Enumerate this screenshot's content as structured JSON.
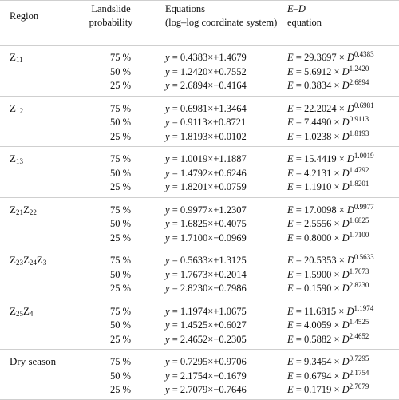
{
  "header": {
    "region": "Region",
    "prob_line1": "Landslide",
    "prob_line2": "probability",
    "eq_line1": "Equations",
    "eq_line2": "(log–log coordinate system)",
    "ed_line1": "E–D",
    "ed_line2": "equation"
  },
  "groups": [
    {
      "name": "Z",
      "sub": "11",
      "name2": "",
      "sub2": "",
      "name3": "",
      "sub3": "",
      "rows": [
        {
          "p": "75 %",
          "slope": "0.4383",
          "sign": "+",
          "icept": "1.4679",
          "E": "29.3697",
          "exp": "0.4383"
        },
        {
          "p": "50 %",
          "slope": "1.2420",
          "sign": "+",
          "icept": "0.7552",
          "E": "5.6912",
          "exp": "1.2420"
        },
        {
          "p": "25 %",
          "slope": "2.6894",
          "sign": "−",
          "icept": "0.4164",
          "E": "0.3834",
          "exp": "2.6894"
        }
      ]
    },
    {
      "name": "Z",
      "sub": "12",
      "name2": "",
      "sub2": "",
      "name3": "",
      "sub3": "",
      "rows": [
        {
          "p": "75 %",
          "slope": "0.6981",
          "sign": "+",
          "icept": "1.3464",
          "E": "22.2024",
          "exp": "0.6981"
        },
        {
          "p": "50 %",
          "slope": "0.9113",
          "sign": "+",
          "icept": "0.8721",
          "E": "7.4490",
          "exp": "0.9113"
        },
        {
          "p": "25 %",
          "slope": "1.8193",
          "sign": "+",
          "icept": "0.0102",
          "E": "1.0238",
          "exp": "1.8193"
        }
      ]
    },
    {
      "name": "Z",
      "sub": "13",
      "name2": "",
      "sub2": "",
      "name3": "",
      "sub3": "",
      "rows": [
        {
          "p": "75 %",
          "slope": "1.0019",
          "sign": "+",
          "icept": "1.1887",
          "E": "15.4419",
          "exp": "1.0019"
        },
        {
          "p": "50 %",
          "slope": "1.4792",
          "sign": "+",
          "icept": "0.6246",
          "E": "4.2131",
          "exp": "1.4792"
        },
        {
          "p": "25 %",
          "slope": "1.8201",
          "sign": "+",
          "icept": "0.0759",
          "E": "1.1910",
          "exp": "1.8201"
        }
      ]
    },
    {
      "name": "Z",
      "sub": "21",
      "name2": "Z",
      "sub2": "22",
      "name3": "",
      "sub3": "",
      "rows": [
        {
          "p": "75 %",
          "slope": "0.9977",
          "sign": "+",
          "icept": "1.2307",
          "E": "17.0098",
          "exp": "0.9977"
        },
        {
          "p": "50 %",
          "slope": "1.6825",
          "sign": "+",
          "icept": "0.4075",
          "E": "2.5556",
          "exp": "1.6825"
        },
        {
          "p": "25 %",
          "slope": "1.7100",
          "sign": "−",
          "icept": "0.0969",
          "E": "0.8000",
          "exp": "1.7100"
        }
      ]
    },
    {
      "name": "Z",
      "sub": "23",
      "name2": "Z",
      "sub2": "24",
      "name3": "Z",
      "sub3": "3",
      "rows": [
        {
          "p": "75 %",
          "slope": "0.5633",
          "sign": "+",
          "icept": "1.3125",
          "E": "20.5353",
          "exp": "0.5633"
        },
        {
          "p": "50 %",
          "slope": "1.7673",
          "sign": "+",
          "icept": "0.2014",
          "E": "1.5900",
          "exp": "1.7673"
        },
        {
          "p": "25 %",
          "slope": "2.8230",
          "sign": "−",
          "icept": "0.7986",
          "E": "0.1590",
          "exp": "2.8230"
        }
      ]
    },
    {
      "name": "Z",
      "sub": "25",
      "name2": "Z",
      "sub2": "4",
      "name3": "",
      "sub3": "",
      "rows": [
        {
          "p": "75 %",
          "slope": "1.1974",
          "sign": "+",
          "icept": "1.0675",
          "E": "11.6815",
          "exp": "1.1974"
        },
        {
          "p": "50 %",
          "slope": "1.4525",
          "sign": "+",
          "icept": "0.6027",
          "E": "4.0059",
          "exp": "1.4525"
        },
        {
          "p": "25 %",
          "slope": "2.4652",
          "sign": "−",
          "icept": "0.2305",
          "E": "0.5882",
          "exp": "2.4652"
        }
      ]
    },
    {
      "name": "Dry season",
      "sub": "",
      "name2": "",
      "sub2": "",
      "name3": "",
      "sub3": "",
      "rows": [
        {
          "p": "75 %",
          "slope": "0.7295",
          "sign": "+",
          "icept": "0.9706",
          "E": "9.3454",
          "exp": "0.7295"
        },
        {
          "p": "50 %",
          "slope": "2.1754",
          "sign": "−",
          "icept": "0.1679",
          "E": "0.6794",
          "exp": "2.1754"
        },
        {
          "p": "25 %",
          "slope": "2.7079",
          "sign": "−",
          "icept": "0.7646",
          "E": "0.1719",
          "exp": "2.7079"
        }
      ]
    }
  ],
  "symbols": {
    "y": "y",
    "eq": " = ",
    "times": "×",
    "E": "E",
    "D": "D",
    "times_sp": " × "
  }
}
